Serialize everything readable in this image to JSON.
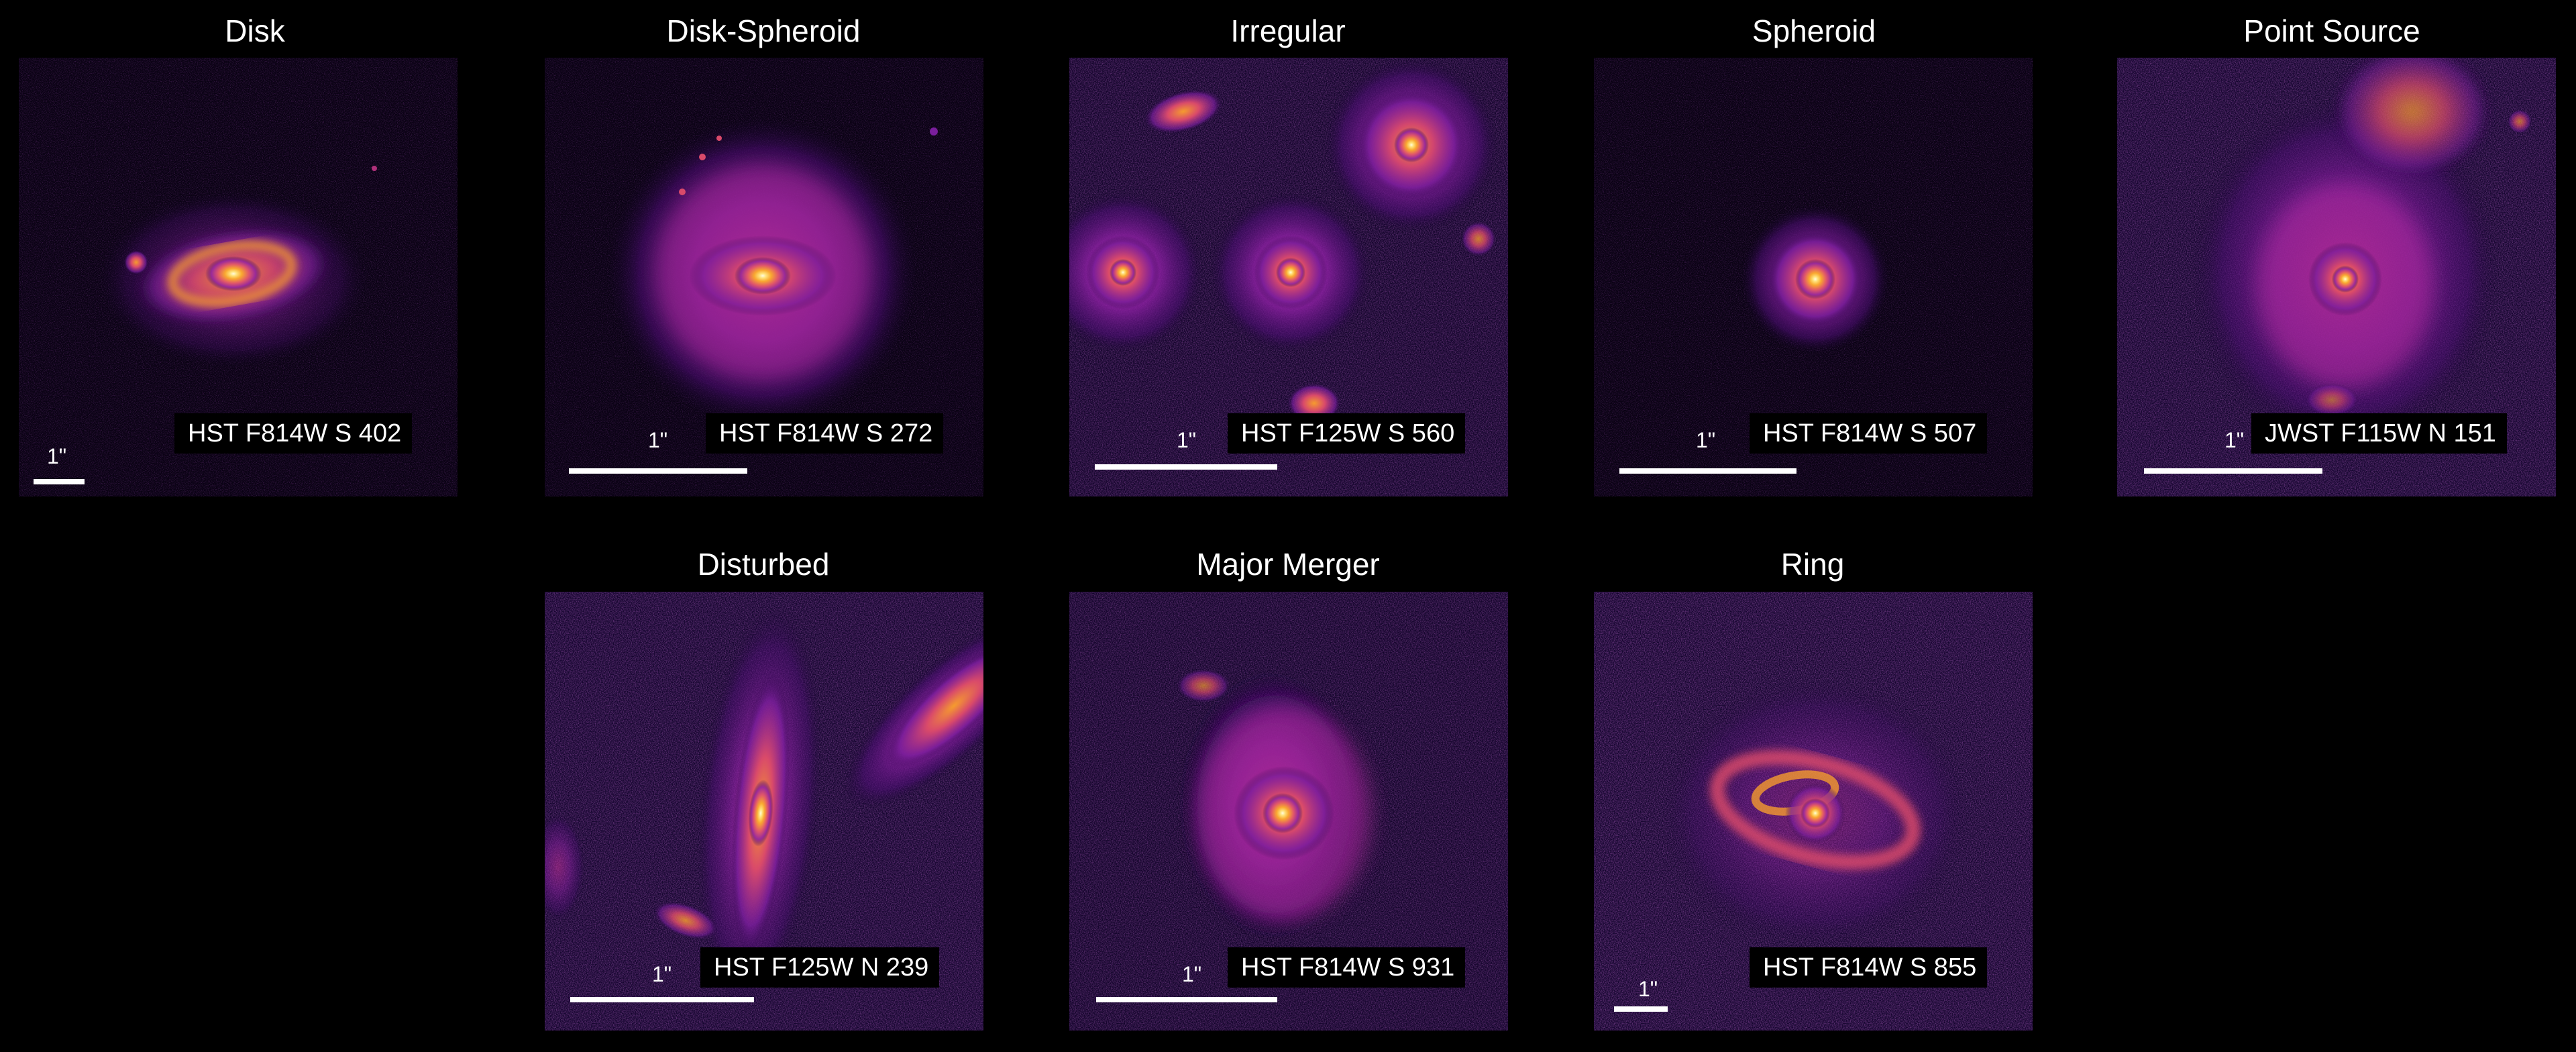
{
  "panels": [
    {
      "title": "Disk",
      "caption": "HST F814W S 402",
      "scale": "1\""
    },
    {
      "title": "Disk-Spheroid",
      "caption": "HST F814W S 272",
      "scale": "1\""
    },
    {
      "title": "Irregular",
      "caption": "HST F125W S 560",
      "scale": "1\""
    },
    {
      "title": "Spheroid",
      "caption": "HST F814W S 507",
      "scale": "1\""
    },
    {
      "title": "Point Source",
      "caption": "JWST F115W N 151",
      "scale": "1\""
    },
    {
      "title": "Disturbed",
      "caption": "HST F125W N 239",
      "scale": "1\""
    },
    {
      "title": "Major Merger",
      "caption": "HST F814W S 931",
      "scale": "1\""
    },
    {
      "title": "Ring",
      "caption": "HST F814W S 855",
      "scale": "1\""
    }
  ],
  "colormap": {
    "low": "#1a0433",
    "mid_low": "#7a1e9c",
    "mid": "#d94a6a",
    "mid_high": "#f59b2e",
    "high": "#fff7c2"
  }
}
